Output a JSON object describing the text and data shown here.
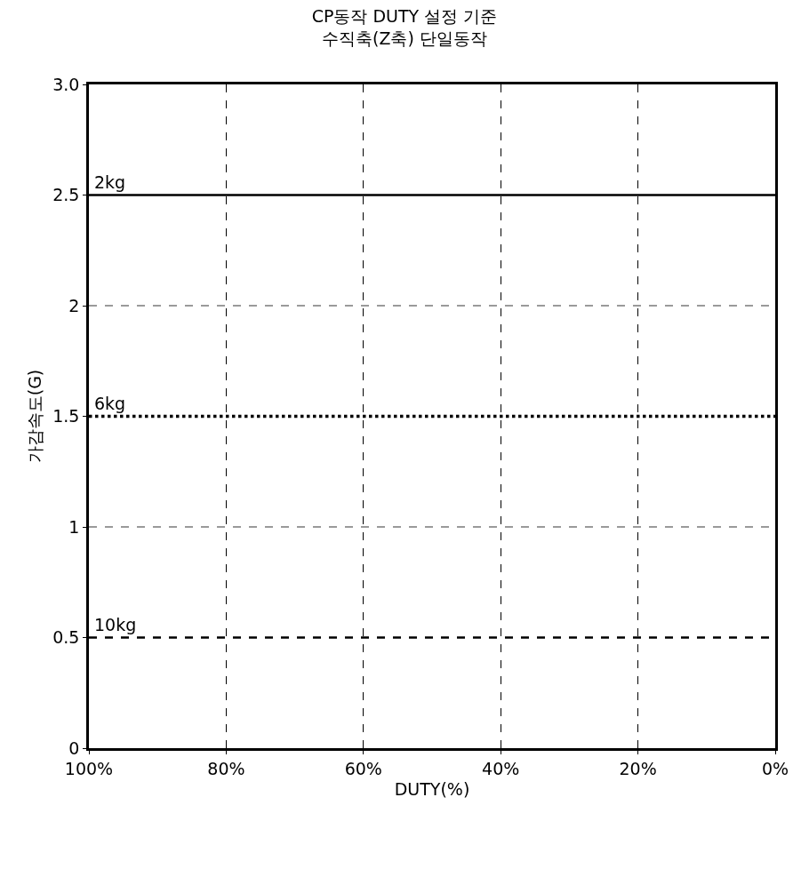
{
  "chart_data": {
    "type": "line",
    "title": "CP동작 DUTY 설정 기준",
    "subtitle": "수직축(Z축) 단일동작",
    "xlabel": "DUTY(%)",
    "ylabel": "가감속도(G)",
    "x": [
      100,
      0
    ],
    "series": [
      {
        "name": "2kg",
        "color": "#000000",
        "values": [
          2.5,
          2.5
        ],
        "line_style": "solid"
      },
      {
        "name": "6kg",
        "color": "#000000",
        "values": [
          1.5,
          1.5
        ],
        "line_style": "dotted"
      },
      {
        "name": "10kg",
        "color": "#000000",
        "values": [
          0.5,
          0.5
        ],
        "line_style": "dashed"
      }
    ],
    "xlim": [
      100,
      0
    ],
    "xticks": [
      {
        "value": 100,
        "label": "100%"
      },
      {
        "value": 80,
        "label": "80%"
      },
      {
        "value": 60,
        "label": "60%"
      },
      {
        "value": 40,
        "label": "40%"
      },
      {
        "value": 20,
        "label": "20%"
      },
      {
        "value": 0,
        "label": "0%"
      }
    ],
    "ylim": [
      0,
      3
    ],
    "yticks": [
      0,
      0.5,
      1,
      1.5,
      2,
      2.5,
      {
        "value": 3,
        "label": "3.0"
      }
    ],
    "grid": true,
    "legend": false,
    "marker": "none"
  }
}
